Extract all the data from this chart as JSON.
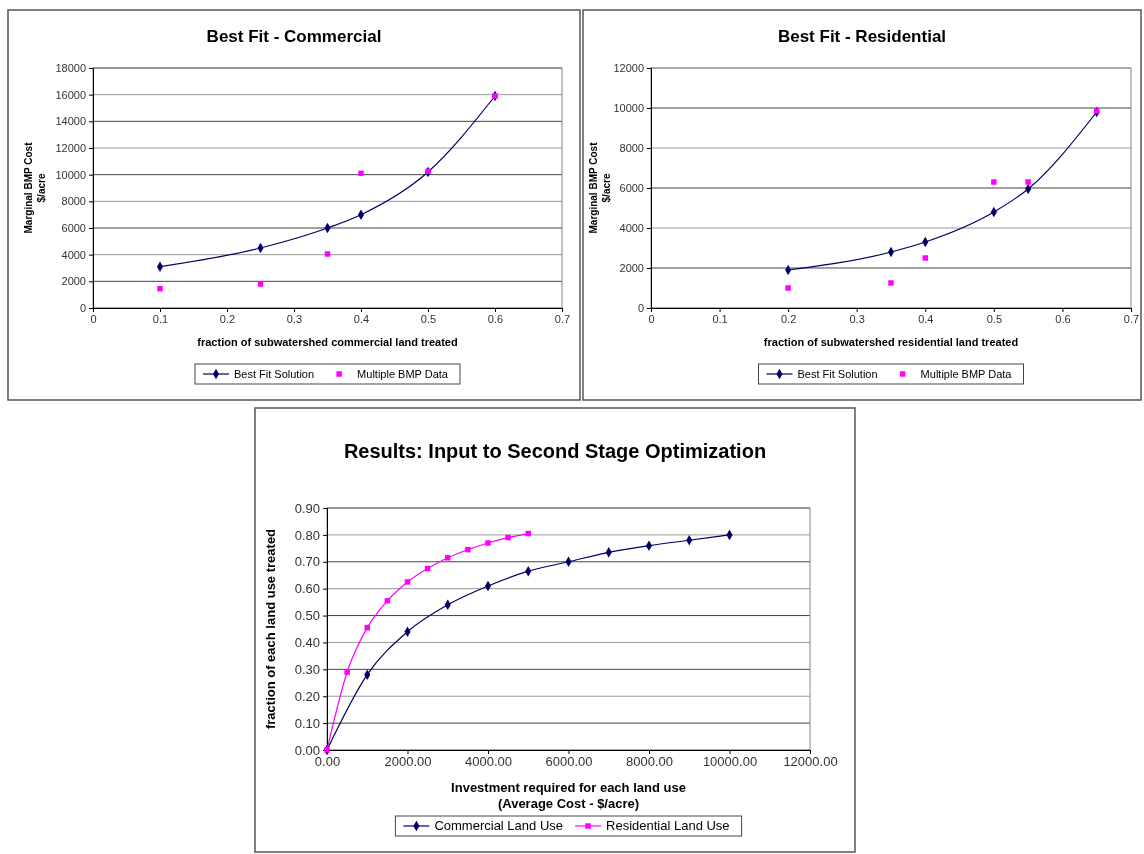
{
  "chart_data": [
    {
      "type": "line",
      "title": "Best Fit - Commercial",
      "xlabel": "fraction of subwatershed commercial land treated",
      "ylabel": "Marginal BMP Cost\n$/acre",
      "xlim": [
        0,
        0.7
      ],
      "xticks": [
        0,
        0.1,
        0.2,
        0.3,
        0.4,
        0.5,
        0.6,
        0.7
      ],
      "ylim": [
        0,
        18000
      ],
      "yticks": [
        0,
        2000,
        4000,
        6000,
        8000,
        10000,
        12000,
        14000,
        16000,
        18000
      ],
      "grid": "y",
      "legend": "bottom",
      "series": [
        {
          "name": "Best Fit Solution",
          "marker": "diamond",
          "color": "#000066",
          "x": [
            0.1,
            0.25,
            0.35,
            0.4,
            0.5,
            0.6
          ],
          "values": [
            3100,
            4500,
            6000,
            7000,
            10200,
            15900
          ]
        },
        {
          "name": "Multiple BMP Data",
          "type": "scatter",
          "marker": "square",
          "color": "#ff00ff",
          "x": [
            0.1,
            0.25,
            0.35,
            0.4,
            0.5,
            0.6
          ],
          "values": [
            1450,
            1800,
            4050,
            10100,
            10250,
            15900
          ]
        }
      ]
    },
    {
      "type": "line",
      "title": "Best Fit - Residential",
      "xlabel": "fraction of subwatershed residential land treated",
      "ylabel": "Marginal BMP Cost\n$/acre",
      "xlim": [
        0,
        0.7
      ],
      "xticks": [
        0,
        0.1,
        0.2,
        0.3,
        0.4,
        0.5,
        0.6,
        0.7
      ],
      "ylim": [
        0,
        12000
      ],
      "yticks": [
        0,
        2000,
        4000,
        6000,
        8000,
        10000,
        12000
      ],
      "grid": "y",
      "legend": "bottom",
      "series": [
        {
          "name": "Best Fit Solution",
          "marker": "diamond",
          "color": "#000066",
          "x": [
            0.2,
            0.35,
            0.4,
            0.5,
            0.55,
            0.65
          ],
          "values": [
            1900,
            2800,
            3300,
            4800,
            5950,
            9800
          ]
        },
        {
          "name": "Multiple BMP Data",
          "type": "scatter",
          "marker": "square",
          "color": "#ff00ff",
          "x": [
            0.2,
            0.35,
            0.4,
            0.5,
            0.55,
            0.65
          ],
          "values": [
            1000,
            1250,
            2500,
            6300,
            6300,
            9850
          ]
        }
      ]
    },
    {
      "type": "line",
      "title": "Results: Input to Second Stage Optimization",
      "xlabel": "Investment required for each land use\n(Average Cost - $/acre)",
      "ylabel": "fraction of each land use treated",
      "xlim": [
        0,
        12000
      ],
      "xticks": [
        {
          "value": 0,
          "label": "0.00"
        },
        {
          "value": 2000,
          "label": "2000.00"
        },
        {
          "value": 4000,
          "label": "4000.00"
        },
        {
          "value": 6000,
          "label": "6000.00"
        },
        {
          "value": 8000,
          "label": "8000.00"
        },
        {
          "value": 10000,
          "label": "10000.00"
        },
        {
          "value": 12000,
          "label": "12000.00"
        }
      ],
      "ylim": [
        0,
        0.9
      ],
      "yticks": [
        {
          "value": 0,
          "label": "0.00"
        },
        {
          "value": 0.1,
          "label": "0.10"
        },
        {
          "value": 0.2,
          "label": "0.20"
        },
        {
          "value": 0.3,
          "label": "0.30"
        },
        {
          "value": 0.4,
          "label": "0.40"
        },
        {
          "value": 0.5,
          "label": "0.50"
        },
        {
          "value": 0.6,
          "label": "0.60"
        },
        {
          "value": 0.7,
          "label": "0.70"
        },
        {
          "value": 0.8,
          "label": "0.80"
        },
        {
          "value": 0.9,
          "label": "0.90"
        }
      ],
      "grid": "y",
      "legend": "bottom",
      "series": [
        {
          "name": "Commercial Land Use",
          "marker": "diamond",
          "color": "#000066",
          "x": [
            0,
            1000,
            2000,
            3000,
            4000,
            5000,
            6000,
            7000,
            8000,
            9000,
            10000
          ],
          "values": [
            0,
            0.28,
            0.44,
            0.54,
            0.61,
            0.665,
            0.7,
            0.735,
            0.76,
            0.78,
            0.8
          ]
        },
        {
          "name": "Residential Land Use",
          "marker": "square",
          "color": "#ff00ff",
          "x": [
            0,
            500,
            1000,
            1500,
            2000,
            2500,
            3000,
            3500,
            4000,
            4500,
            5000
          ],
          "values": [
            0,
            0.29,
            0.455,
            0.555,
            0.625,
            0.675,
            0.715,
            0.745,
            0.77,
            0.79,
            0.805
          ]
        }
      ]
    }
  ]
}
